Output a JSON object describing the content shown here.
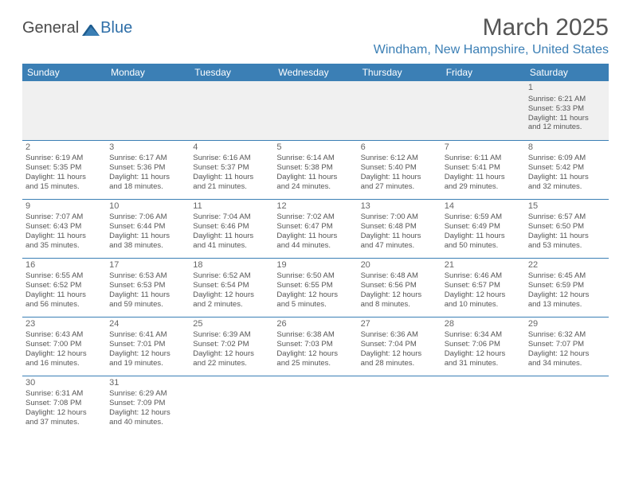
{
  "logo": {
    "text_a": "General",
    "text_b": "Blue"
  },
  "title": "March 2025",
  "location": "Windham, New Hampshire, United States",
  "colors": {
    "header_bg": "#3b7fb5",
    "header_text": "#ffffff",
    "cell_border": "#3b7fb5",
    "text": "#555555",
    "first_row_bg": "#f0f0f0",
    "logo_accent": "#2f6fa8"
  },
  "day_headers": [
    "Sunday",
    "Monday",
    "Tuesday",
    "Wednesday",
    "Thursday",
    "Friday",
    "Saturday"
  ],
  "weeks": [
    [
      null,
      null,
      null,
      null,
      null,
      null,
      {
        "n": "1",
        "sr": "Sunrise: 6:21 AM",
        "ss": "Sunset: 5:33 PM",
        "d1": "Daylight: 11 hours",
        "d2": "and 12 minutes."
      }
    ],
    [
      {
        "n": "2",
        "sr": "Sunrise: 6:19 AM",
        "ss": "Sunset: 5:35 PM",
        "d1": "Daylight: 11 hours",
        "d2": "and 15 minutes."
      },
      {
        "n": "3",
        "sr": "Sunrise: 6:17 AM",
        "ss": "Sunset: 5:36 PM",
        "d1": "Daylight: 11 hours",
        "d2": "and 18 minutes."
      },
      {
        "n": "4",
        "sr": "Sunrise: 6:16 AM",
        "ss": "Sunset: 5:37 PM",
        "d1": "Daylight: 11 hours",
        "d2": "and 21 minutes."
      },
      {
        "n": "5",
        "sr": "Sunrise: 6:14 AM",
        "ss": "Sunset: 5:38 PM",
        "d1": "Daylight: 11 hours",
        "d2": "and 24 minutes."
      },
      {
        "n": "6",
        "sr": "Sunrise: 6:12 AM",
        "ss": "Sunset: 5:40 PM",
        "d1": "Daylight: 11 hours",
        "d2": "and 27 minutes."
      },
      {
        "n": "7",
        "sr": "Sunrise: 6:11 AM",
        "ss": "Sunset: 5:41 PM",
        "d1": "Daylight: 11 hours",
        "d2": "and 29 minutes."
      },
      {
        "n": "8",
        "sr": "Sunrise: 6:09 AM",
        "ss": "Sunset: 5:42 PM",
        "d1": "Daylight: 11 hours",
        "d2": "and 32 minutes."
      }
    ],
    [
      {
        "n": "9",
        "sr": "Sunrise: 7:07 AM",
        "ss": "Sunset: 6:43 PM",
        "d1": "Daylight: 11 hours",
        "d2": "and 35 minutes."
      },
      {
        "n": "10",
        "sr": "Sunrise: 7:06 AM",
        "ss": "Sunset: 6:44 PM",
        "d1": "Daylight: 11 hours",
        "d2": "and 38 minutes."
      },
      {
        "n": "11",
        "sr": "Sunrise: 7:04 AM",
        "ss": "Sunset: 6:46 PM",
        "d1": "Daylight: 11 hours",
        "d2": "and 41 minutes."
      },
      {
        "n": "12",
        "sr": "Sunrise: 7:02 AM",
        "ss": "Sunset: 6:47 PM",
        "d1": "Daylight: 11 hours",
        "d2": "and 44 minutes."
      },
      {
        "n": "13",
        "sr": "Sunrise: 7:00 AM",
        "ss": "Sunset: 6:48 PM",
        "d1": "Daylight: 11 hours",
        "d2": "and 47 minutes."
      },
      {
        "n": "14",
        "sr": "Sunrise: 6:59 AM",
        "ss": "Sunset: 6:49 PM",
        "d1": "Daylight: 11 hours",
        "d2": "and 50 minutes."
      },
      {
        "n": "15",
        "sr": "Sunrise: 6:57 AM",
        "ss": "Sunset: 6:50 PM",
        "d1": "Daylight: 11 hours",
        "d2": "and 53 minutes."
      }
    ],
    [
      {
        "n": "16",
        "sr": "Sunrise: 6:55 AM",
        "ss": "Sunset: 6:52 PM",
        "d1": "Daylight: 11 hours",
        "d2": "and 56 minutes."
      },
      {
        "n": "17",
        "sr": "Sunrise: 6:53 AM",
        "ss": "Sunset: 6:53 PM",
        "d1": "Daylight: 11 hours",
        "d2": "and 59 minutes."
      },
      {
        "n": "18",
        "sr": "Sunrise: 6:52 AM",
        "ss": "Sunset: 6:54 PM",
        "d1": "Daylight: 12 hours",
        "d2": "and 2 minutes."
      },
      {
        "n": "19",
        "sr": "Sunrise: 6:50 AM",
        "ss": "Sunset: 6:55 PM",
        "d1": "Daylight: 12 hours",
        "d2": "and 5 minutes."
      },
      {
        "n": "20",
        "sr": "Sunrise: 6:48 AM",
        "ss": "Sunset: 6:56 PM",
        "d1": "Daylight: 12 hours",
        "d2": "and 8 minutes."
      },
      {
        "n": "21",
        "sr": "Sunrise: 6:46 AM",
        "ss": "Sunset: 6:57 PM",
        "d1": "Daylight: 12 hours",
        "d2": "and 10 minutes."
      },
      {
        "n": "22",
        "sr": "Sunrise: 6:45 AM",
        "ss": "Sunset: 6:59 PM",
        "d1": "Daylight: 12 hours",
        "d2": "and 13 minutes."
      }
    ],
    [
      {
        "n": "23",
        "sr": "Sunrise: 6:43 AM",
        "ss": "Sunset: 7:00 PM",
        "d1": "Daylight: 12 hours",
        "d2": "and 16 minutes."
      },
      {
        "n": "24",
        "sr": "Sunrise: 6:41 AM",
        "ss": "Sunset: 7:01 PM",
        "d1": "Daylight: 12 hours",
        "d2": "and 19 minutes."
      },
      {
        "n": "25",
        "sr": "Sunrise: 6:39 AM",
        "ss": "Sunset: 7:02 PM",
        "d1": "Daylight: 12 hours",
        "d2": "and 22 minutes."
      },
      {
        "n": "26",
        "sr": "Sunrise: 6:38 AM",
        "ss": "Sunset: 7:03 PM",
        "d1": "Daylight: 12 hours",
        "d2": "and 25 minutes."
      },
      {
        "n": "27",
        "sr": "Sunrise: 6:36 AM",
        "ss": "Sunset: 7:04 PM",
        "d1": "Daylight: 12 hours",
        "d2": "and 28 minutes."
      },
      {
        "n": "28",
        "sr": "Sunrise: 6:34 AM",
        "ss": "Sunset: 7:06 PM",
        "d1": "Daylight: 12 hours",
        "d2": "and 31 minutes."
      },
      {
        "n": "29",
        "sr": "Sunrise: 6:32 AM",
        "ss": "Sunset: 7:07 PM",
        "d1": "Daylight: 12 hours",
        "d2": "and 34 minutes."
      }
    ],
    [
      {
        "n": "30",
        "sr": "Sunrise: 6:31 AM",
        "ss": "Sunset: 7:08 PM",
        "d1": "Daylight: 12 hours",
        "d2": "and 37 minutes."
      },
      {
        "n": "31",
        "sr": "Sunrise: 6:29 AM",
        "ss": "Sunset: 7:09 PM",
        "d1": "Daylight: 12 hours",
        "d2": "and 40 minutes."
      },
      null,
      null,
      null,
      null,
      null
    ]
  ]
}
